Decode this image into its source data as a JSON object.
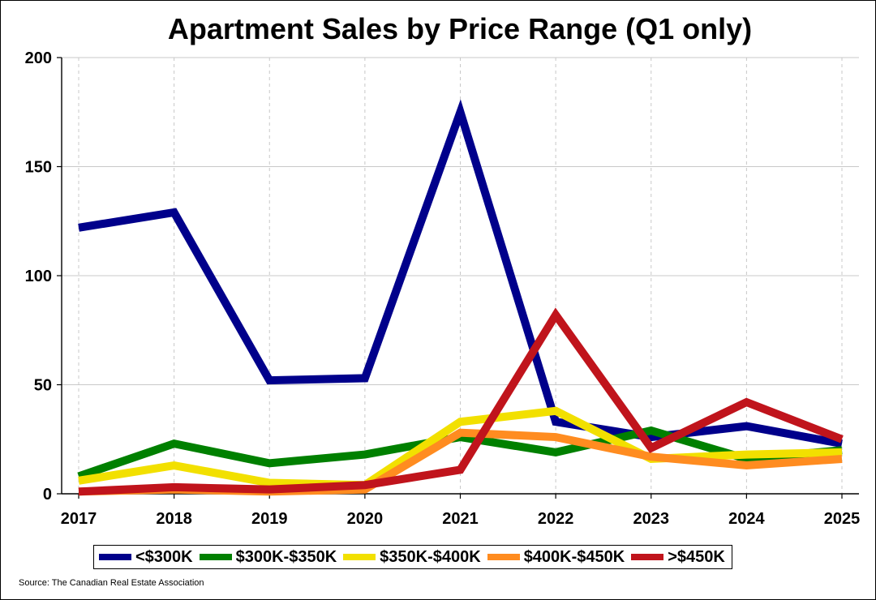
{
  "chart_data": {
    "type": "line",
    "title": "Apartment Sales by Price Range (Q1 only)",
    "xlabel": "",
    "ylabel": "",
    "x": [
      "2017",
      "2018",
      "2019",
      "2020",
      "2021",
      "2022",
      "2023",
      "2024",
      "2025"
    ],
    "ylim": [
      0,
      200
    ],
    "yticks": [
      "0",
      "50",
      "100",
      "150",
      "200"
    ],
    "grid": "y-solid, x-dashed",
    "legend_position": "bottom",
    "series": [
      {
        "name": "<$300K",
        "color": "#00008B",
        "values": [
          122,
          129,
          52,
          53,
          175,
          33,
          26,
          31,
          23
        ]
      },
      {
        "name": "$300K-$350K",
        "color": "#008000",
        "values": [
          8,
          23,
          14,
          18,
          26,
          19,
          29,
          16,
          20
        ]
      },
      {
        "name": "$350K-$400K",
        "color": "#F2E000",
        "values": [
          6,
          13,
          5,
          4,
          33,
          38,
          16,
          18,
          19
        ]
      },
      {
        "name": "$400K-$450K",
        "color": "#FF8C20",
        "values": [
          1,
          2,
          1,
          2,
          28,
          26,
          17,
          13,
          16
        ]
      },
      {
        "name": ">$450K",
        "color": "#C0141C",
        "values": [
          1,
          3,
          2,
          4,
          11,
          82,
          21,
          42,
          25
        ]
      }
    ]
  },
  "source": "Source: The Canadian Real Estate Association"
}
